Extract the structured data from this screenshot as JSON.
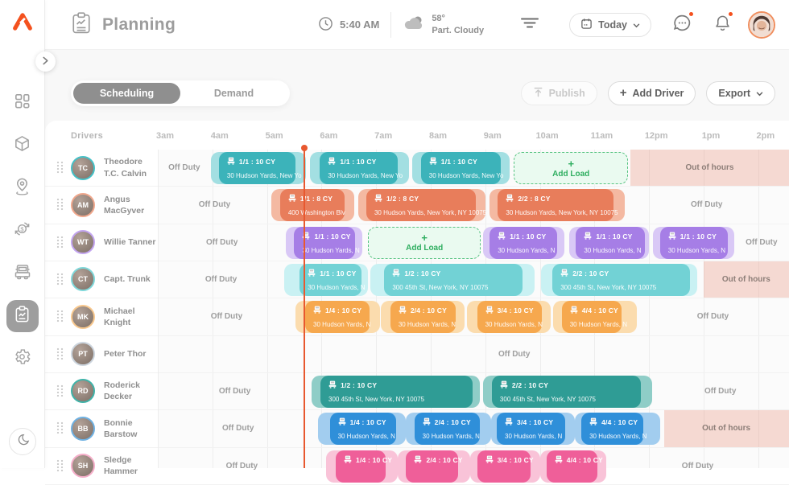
{
  "colors": {
    "accent": "#f4511e",
    "current_time_line": "#e8582f",
    "add_load_green": "#2fae60",
    "out_of_hours_text": "#8d7e78"
  },
  "header": {
    "title": "Planning",
    "time": "5:40 AM",
    "temperature": "58°",
    "weather": "Part. Cloudy",
    "date_selector": "Today"
  },
  "toolbar": {
    "tabs": [
      "Scheduling",
      "Demand"
    ],
    "active_tab": "Scheduling",
    "publish": "Publish",
    "add_driver": "Add Driver",
    "add_driver_plus": "+",
    "export": "Export"
  },
  "schedule": {
    "drivers_header": "Drivers",
    "hours": [
      "3am",
      "4am",
      "5am",
      "6am",
      "7am",
      "8am",
      "9am",
      "10am",
      "11am",
      "12pm",
      "1pm",
      "2pm"
    ],
    "current_time": 5.667,
    "add_load_plus": "+",
    "rows": [
      {
        "driver": "Theodore T.C. Calvin",
        "initials": "TC",
        "ring": "#45c1c7",
        "color": "#3cb3ba",
        "light": "#a3dfe2",
        "segments": [
          {
            "type": "label",
            "t0": 3,
            "t1": 3.97,
            "text": "Off Duty"
          },
          {
            "type": "load",
            "b0": 3.97,
            "b1": 5.72,
            "t0": 4.12,
            "t1": 5.52,
            "title": "1/1 : 10 CY",
            "address": "30 Hudson Yards, New Yo"
          },
          {
            "type": "load",
            "b0": 5.79,
            "b1": 7.6,
            "t0": 5.97,
            "t1": 7.4,
            "title": "1/1 : 10 CY",
            "address": "30 Hudson Yards, New Yo"
          },
          {
            "type": "load",
            "b0": 7.66,
            "b1": 9.45,
            "t0": 7.82,
            "t1": 9.28,
            "title": "1/1 : 10 CY",
            "address": "30 Hudson Yards, New Yo"
          },
          {
            "type": "addload",
            "t0": 9.52,
            "t1": 11.62,
            "text": "Add Load"
          },
          {
            "type": "ooh",
            "t0": 11.66,
            "t1": 14.56,
            "text": "Out of hours"
          }
        ]
      },
      {
        "driver": "Angus MacGyver",
        "initials": "AM",
        "ring": "#f0a78c",
        "color": "#e87d5b",
        "light": "#f4b9a2",
        "segments": [
          {
            "type": "label",
            "t0": 3,
            "t1": 5.08,
            "text": "Off Duty"
          },
          {
            "type": "load",
            "b0": 5.08,
            "b1": 6.6,
            "t0": 5.24,
            "t1": 6.42,
            "title": "1/1 : 8 CY",
            "address": "400 Washington Blv"
          },
          {
            "type": "load",
            "b0": 6.67,
            "b1": 9.0,
            "t0": 6.82,
            "t1": 8.82,
            "title": "1/2 : 8 CY",
            "address": "30 Hudson Yards, New York, NY 10075"
          },
          {
            "type": "load",
            "b0": 9.08,
            "b1": 11.55,
            "t0": 9.23,
            "t1": 11.35,
            "title": "2/2 : 8 CY",
            "address": "30 Hudson Yards, New York, NY 10075"
          },
          {
            "type": "label",
            "t0": 11.55,
            "t1": 14.56,
            "text": "Off Duty"
          }
        ]
      },
      {
        "driver": "Willie Tanner",
        "initials": "WT",
        "ring": "#c3a5f0",
        "color": "#a67ee6",
        "light": "#d9c8f6",
        "segments": [
          {
            "type": "label",
            "t0": 3,
            "t1": 5.35,
            "text": "Off Duty"
          },
          {
            "type": "load",
            "b0": 5.35,
            "b1": 6.75,
            "t0": 5.5,
            "t1": 6.62,
            "title": "1/1 : 10 CY",
            "address": "30 Hudson Yards, N"
          },
          {
            "type": "addload",
            "t0": 6.85,
            "t1": 8.92,
            "text": "Add Load"
          },
          {
            "type": "load",
            "b0": 8.96,
            "b1": 10.45,
            "t0": 9.08,
            "t1": 10.31,
            "title": "1/1 : 10 CY",
            "address": "30 Hudson Yards, N"
          },
          {
            "type": "load",
            "b0": 10.53,
            "b1": 12.0,
            "t0": 10.66,
            "t1": 11.92,
            "title": "1/1 : 10 CY",
            "address": "30 Hudson Yards, N"
          },
          {
            "type": "load",
            "b0": 12.07,
            "b1": 13.56,
            "t0": 12.2,
            "t1": 13.44,
            "title": "1/1 : 10 CY",
            "address": "30 Hudson Yards, N"
          },
          {
            "type": "label",
            "t0": 13.56,
            "t1": 14.56,
            "text": "Off Duty"
          }
        ]
      },
      {
        "driver": "Capt. Trunk",
        "initials": "CT",
        "ring": "#7fd8da",
        "color": "#72d2d5",
        "light": "#c9f1f3",
        "segments": [
          {
            "type": "label",
            "t0": 3,
            "t1": 5.32,
            "text": "Off Duty"
          },
          {
            "type": "load",
            "b0": 5.32,
            "b1": 6.85,
            "t0": 5.6,
            "t1": 6.73,
            "title": "1/1 : 10 CY",
            "address": "30 Hudson Yards, N"
          },
          {
            "type": "load",
            "b0": 6.9,
            "b1": 9.9,
            "t0": 7.15,
            "t1": 9.68,
            "title": "1/2 : 10 CY",
            "address": "300 45th St, New York, NY 10075"
          },
          {
            "type": "load",
            "b0": 10.02,
            "b1": 12.88,
            "t0": 10.23,
            "t1": 12.75,
            "title": "2/2 : 10 CY",
            "address": "300 45th St, New York, NY 10075"
          },
          {
            "type": "ooh",
            "t0": 13.0,
            "t1": 14.56,
            "text": "Out of hours"
          }
        ]
      },
      {
        "driver": "Michael Knight",
        "initials": "MK",
        "ring": "#f8c88e",
        "color": "#f6a84e",
        "light": "#fbdcae",
        "segments": [
          {
            "type": "label",
            "t0": 3,
            "t1": 5.52,
            "text": "Off Duty"
          },
          {
            "type": "load",
            "b0": 5.52,
            "b1": 7.07,
            "t0": 5.7,
            "t1": 6.88,
            "title": "1/4 : 10 CY",
            "address": "30 Hudson Yards, N"
          },
          {
            "type": "load",
            "b0": 7.09,
            "b1": 8.62,
            "t0": 7.26,
            "t1": 8.46,
            "title": "2/4 : 10 CY",
            "address": "30 Hudson Yards, N"
          },
          {
            "type": "load",
            "b0": 8.66,
            "b1": 10.2,
            "t0": 8.85,
            "t1": 10.03,
            "title": "3/4 : 10 CY",
            "address": "30 Hudson Yards, N"
          },
          {
            "type": "load",
            "b0": 10.24,
            "b1": 11.78,
            "t0": 10.4,
            "t1": 11.5,
            "title": "4/4 : 10 CY",
            "address": "30 Hudson Yards, N"
          },
          {
            "type": "label",
            "t0": 11.78,
            "t1": 14.56,
            "text": "Off Duty"
          }
        ]
      },
      {
        "driver": "Peter Thor",
        "initials": "PT",
        "ring": "#ccd5de",
        "color": "#b9c3cc",
        "light": "#dfe5ea",
        "segments": [
          {
            "type": "label",
            "t0": 4.5,
            "t1": 14.56,
            "text": "Off Duty"
          }
        ]
      },
      {
        "driver": "Roderick Decker",
        "initials": "RD",
        "ring": "#3fb3a9",
        "color": "#2f9c95",
        "light": "#8fcdc7",
        "segments": [
          {
            "type": "label",
            "t0": 3,
            "t1": 5.82,
            "text": "Off Duty"
          },
          {
            "type": "load",
            "b0": 5.82,
            "b1": 8.9,
            "t0": 5.98,
            "t1": 8.76,
            "title": "1/2 : 10 CY",
            "address": "300 45th St, New York, NY 10075"
          },
          {
            "type": "load",
            "b0": 8.96,
            "b1": 12.05,
            "t0": 9.12,
            "t1": 11.85,
            "title": "2/2 : 10 CY",
            "address": "300 45th St, New York, NY 10075"
          },
          {
            "type": "label",
            "t0": 12.05,
            "t1": 14.56,
            "text": "Off Duty"
          }
        ]
      },
      {
        "driver": "Bonnie Barstow",
        "initials": "BB",
        "ring": "#6fb1e2",
        "color": "#2f8fd9",
        "light": "#a2cdef",
        "segments": [
          {
            "type": "label",
            "t0": 3,
            "t1": 5.94,
            "text": "Off Duty"
          },
          {
            "type": "load",
            "b0": 5.94,
            "b1": 7.55,
            "t0": 6.15,
            "t1": 7.36,
            "title": "1/4 : 10 CY",
            "address": "30 Hudson Yards, N"
          },
          {
            "type": "load",
            "b0": 7.55,
            "b1": 9.1,
            "t0": 7.7,
            "t1": 8.9,
            "title": "2/4 : 10 CY",
            "address": "30 Hudson Yards, N"
          },
          {
            "type": "load",
            "b0": 9.1,
            "b1": 10.64,
            "t0": 9.21,
            "t1": 10.47,
            "title": "3/4 : 10 CY",
            "address": "30 Hudson Yards, N"
          },
          {
            "type": "load",
            "b0": 10.64,
            "b1": 12.2,
            "t0": 10.76,
            "t1": 11.9,
            "title": "4/4 : 10 CY",
            "address": "30 Hudson Yards, N"
          },
          {
            "type": "ooh",
            "t0": 12.27,
            "t1": 14.56,
            "text": "Out of hours"
          }
        ]
      },
      {
        "driver": "Sledge Hammer",
        "initials": "SH",
        "ring": "#f5aec9",
        "color": "#ef5f99",
        "light": "#f9c3d8",
        "segments": [
          {
            "type": "label",
            "t0": 3,
            "t1": 6.08,
            "text": "Off Duty"
          },
          {
            "type": "load",
            "b0": 6.08,
            "b1": 7.4,
            "t0": 6.26,
            "t1": 7.18,
            "title": "1/4 : 10 CY"
          },
          {
            "type": "load",
            "b0": 7.4,
            "b1": 8.73,
            "t0": 7.55,
            "t1": 8.5,
            "title": "2/4 : 10 CY"
          },
          {
            "type": "load",
            "b0": 8.73,
            "b1": 10.0,
            "t0": 8.85,
            "t1": 9.83,
            "title": "3/4 : 10 CY"
          },
          {
            "type": "load",
            "b0": 10.0,
            "b1": 11.22,
            "t0": 10.12,
            "t1": 11.05,
            "title": "4/4 : 10 CY"
          },
          {
            "type": "label",
            "t0": 11.22,
            "t1": 14.56,
            "text": "Off Duty"
          }
        ]
      }
    ]
  }
}
